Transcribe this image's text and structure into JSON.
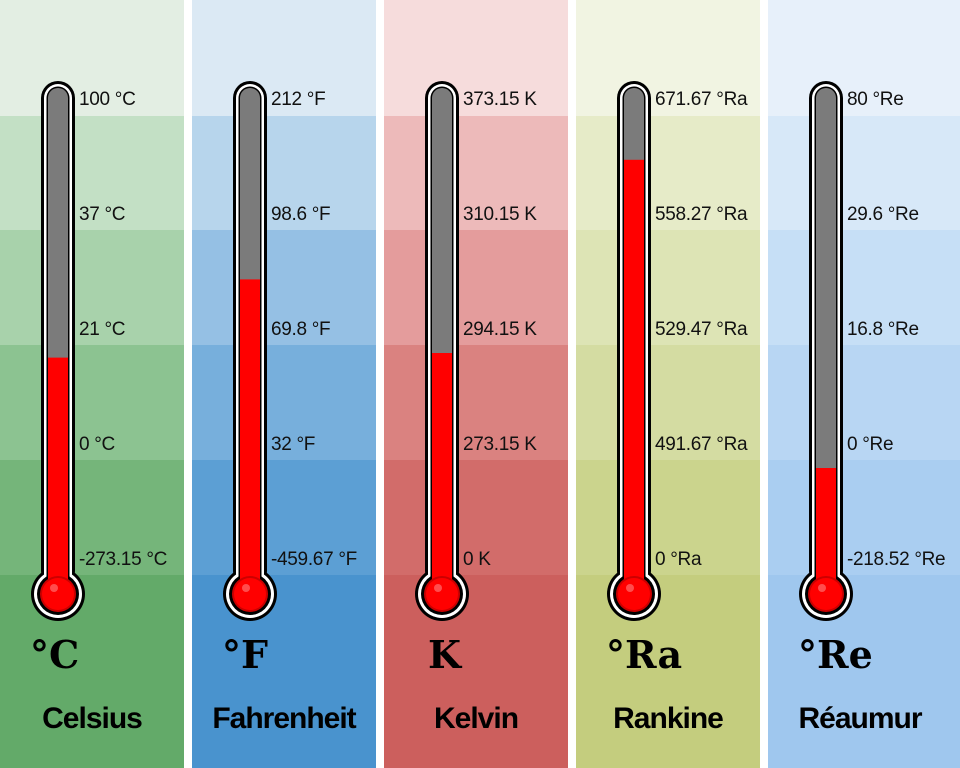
{
  "scales": [
    {
      "symbol": "°C",
      "name": "Celsius",
      "fill_fraction": 0.44,
      "ticks": [
        "100 °C",
        "37 °C",
        "21 °C",
        "0 °C",
        "-273.15 °C"
      ],
      "bands": [
        "#e3eee3",
        "#c3e0c5",
        "#a8d2ab",
        "#8cc391",
        "#75b57a",
        "#63aa69"
      ]
    },
    {
      "symbol": "°F",
      "name": "Fahrenheit",
      "fill_fraction": 0.61,
      "ticks": [
        "212 °F",
        "98.6 °F",
        "69.8 °F",
        "32 °F",
        "-459.67 °F"
      ],
      "bands": [
        "#dbe9f4",
        "#b7d5ec",
        "#95c0e4",
        "#77afdc",
        "#5c9fd4",
        "#4993ce"
      ]
    },
    {
      "symbol": "K",
      "name": "Kelvin",
      "fill_fraction": 0.45,
      "ticks": [
        "373.15 K",
        "310.15 K",
        "294.15 K",
        "273.15 K",
        "0 K"
      ],
      "bands": [
        "#f6dcdc",
        "#edbaba",
        "#e49c9c",
        "#da8280",
        "#d26c6a",
        "#cc5f5d"
      ]
    },
    {
      "symbol": "°Ra",
      "name": "Rankine",
      "fill_fraction": 0.87,
      "ticks": [
        "671.67 °Ra",
        "558.27 °Ra",
        "529.47 °Ra",
        "491.67 °Ra",
        "0 °Ra"
      ],
      "bands": [
        "#f1f4e2",
        "#e6ebc8",
        "#dde4b5",
        "#d4dca2",
        "#cbd48d",
        "#c4cd7e"
      ]
    },
    {
      "symbol": "°Re",
      "name": "Réaumur",
      "fill_fraction": 0.2,
      "ticks": [
        "80 °Re",
        "29.6 °Re",
        "16.8 °Re",
        "0 °Re",
        "-218.52 °Re"
      ],
      "bands": [
        "#e7f0fa",
        "#d7e8f8",
        "#c6dff6",
        "#b8d6f3",
        "#aacef1",
        "#9fc7ee"
      ]
    }
  ],
  "colors": {
    "mercury": "#ff0000",
    "tube": "#7b7b7b",
    "outline": "#000000"
  }
}
